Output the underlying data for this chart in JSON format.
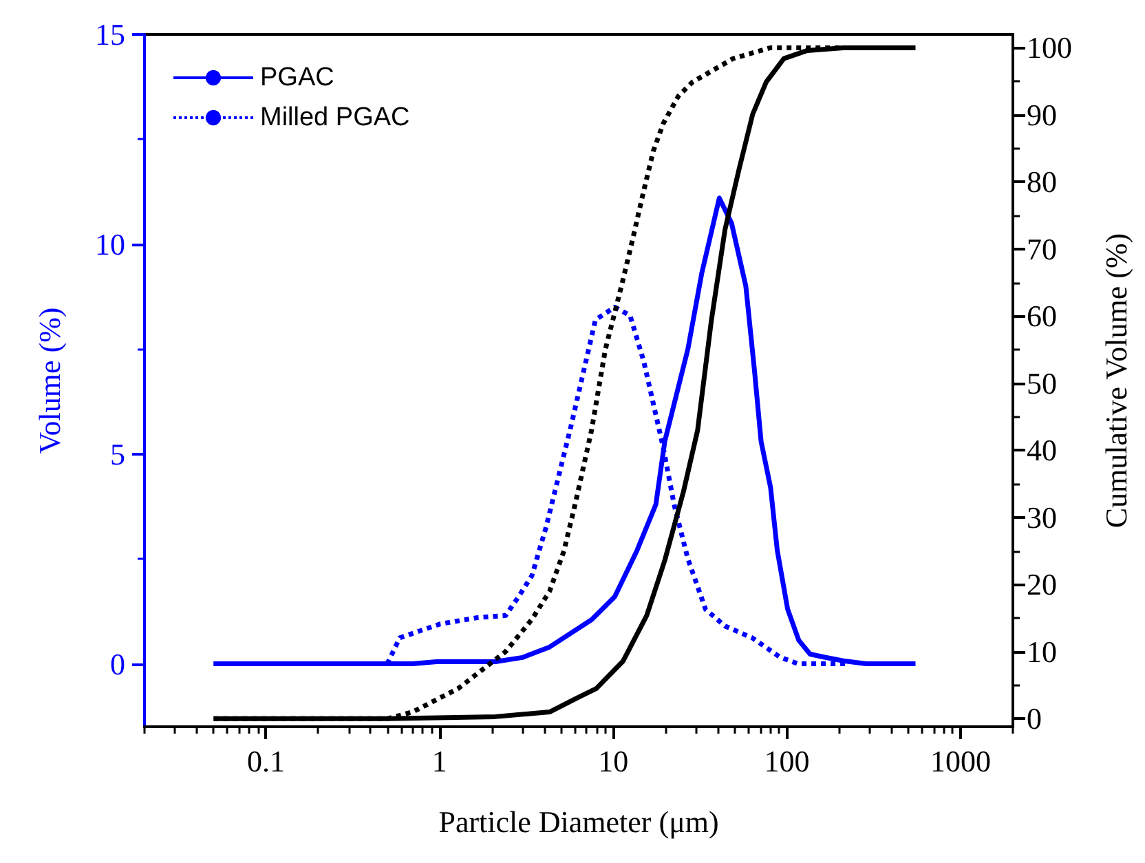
{
  "chart_data": {
    "type": "line",
    "xlabel": "Particle Diameter (μm)",
    "ylabel": "Volume (%)",
    "y2label": "Cumulative Volume (%)",
    "log": "x",
    "xlim": [
      0.02,
      2000
    ],
    "xticks": [
      0.1,
      1,
      10,
      100,
      1000
    ],
    "ylim": [
      -1.5,
      15
    ],
    "yticks": [
      0,
      5,
      10,
      15
    ],
    "y2lim": [
      -1.2,
      102
    ],
    "y2ticks": [
      0,
      10,
      20,
      30,
      40,
      50,
      60,
      70,
      80,
      90,
      100
    ],
    "grid": false,
    "legend": "top left",
    "marker": "none",
    "series": [
      {
        "name": "PGAC",
        "color": "#0000ff",
        "line_style": "solid",
        "x": [
          0.05,
          0.7,
          0.96,
          2.1,
          3.0,
          4.3,
          7.5,
          10.2,
          13.7,
          17.6,
          19.8,
          26.9,
          32.3,
          40.8,
          48,
          58,
          65,
          71,
          80.5,
          88,
          101,
          117,
          136,
          163,
          211,
          286,
          550
        ],
        "values": [
          0,
          0,
          0.05,
          0.05,
          0.15,
          0.4,
          1.05,
          1.6,
          2.7,
          3.8,
          5.3,
          7.5,
          9.3,
          11.1,
          10.5,
          9.0,
          7.0,
          5.3,
          4.2,
          2.7,
          1.3,
          0.56,
          0.23,
          0.16,
          0.07,
          0,
          0
        ]
      },
      {
        "name": "Milled PGAC",
        "color": "#0000ff",
        "line_style": "dotted",
        "x": [
          0.05,
          0.5,
          0.59,
          1.01,
          1.65,
          2.4,
          2.85,
          3.4,
          4.1,
          4.9,
          5.7,
          7.9,
          10.2,
          12.5,
          15,
          18,
          19.3,
          22.4,
          26.9,
          34,
          44,
          63,
          91,
          116,
          228
        ],
        "values": [
          0,
          0,
          0.62,
          0.95,
          1.1,
          1.15,
          1.6,
          2.1,
          3.25,
          4.55,
          5.65,
          8.2,
          8.5,
          8.3,
          7.2,
          5.75,
          5.2,
          3.8,
          2.5,
          1.3,
          0.9,
          0.62,
          0.16,
          0,
          0
        ]
      },
      {
        "color": "#000000",
        "line_style": "solid",
        "axis": "y2",
        "x": [
          0.05,
          0.5,
          2.1,
          4.3,
          6.2,
          8.0,
          11.4,
          15.6,
          19.8,
          25.4,
          30.6,
          36.7,
          44,
          53,
          63.5,
          76,
          96,
          131,
          211,
          550
        ],
        "values": [
          0,
          0,
          0.3,
          1.0,
          3.1,
          4.5,
          8.6,
          15.4,
          23.6,
          33.9,
          43,
          59.3,
          72.9,
          81.9,
          90.1,
          94.9,
          98.4,
          99.6,
          100,
          100
        ]
      },
      {
        "color": "#000000",
        "line_style": "dotted",
        "axis": "y2",
        "x": [
          0.05,
          0.5,
          0.7,
          1.28,
          2.4,
          3.4,
          4.3,
          5.2,
          6.1,
          7.5,
          9.0,
          11.2,
          13,
          14.7,
          17,
          19.4,
          23.7,
          28.6,
          36.6,
          49,
          80,
          131,
          228
        ],
        "values": [
          0,
          0,
          1.0,
          4.5,
          10,
          14.8,
          19,
          25,
          32.5,
          43,
          55,
          64.7,
          71.7,
          77.8,
          84.6,
          88.7,
          92.8,
          94.9,
          96.5,
          98.4,
          100,
          100,
          100
        ]
      }
    ]
  }
}
